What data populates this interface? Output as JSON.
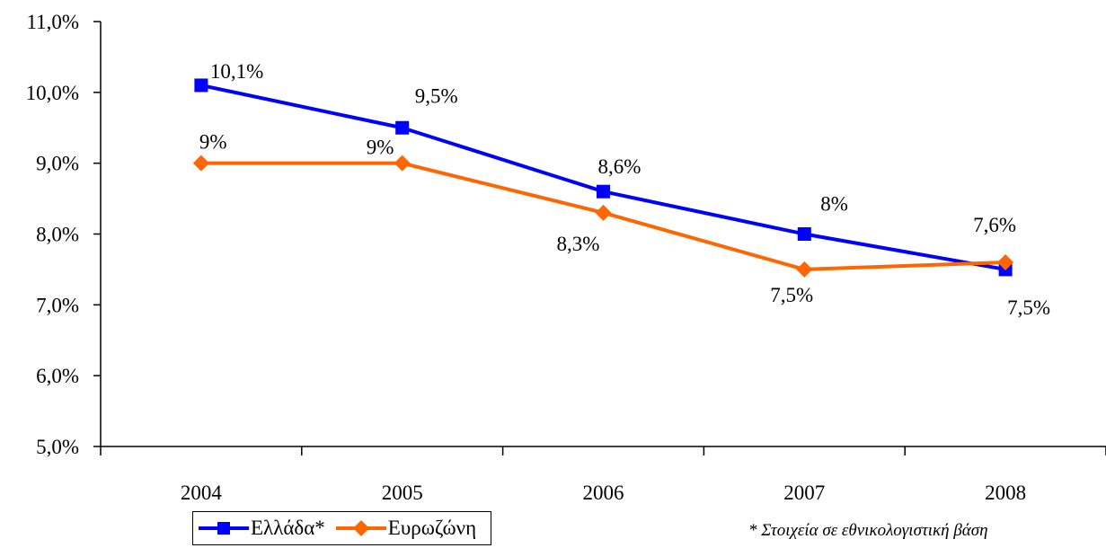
{
  "chart_data": {
    "type": "line",
    "categories": [
      "2004",
      "2005",
      "2006",
      "2007",
      "2008"
    ],
    "ylim": [
      5.0,
      11.0
    ],
    "yticks": [
      "5,0%",
      "6,0%",
      "7,0%",
      "8,0%",
      "9,0%",
      "10,0%",
      "11,0%"
    ],
    "ytick_values": [
      5,
      6,
      7,
      8,
      9,
      10,
      11
    ],
    "grid": false,
    "legend_position": "bottom-left",
    "series": [
      {
        "name": "Ελλάδα*",
        "color": "#0000FF",
        "marker": "square",
        "values": [
          10.1,
          9.5,
          8.6,
          8.0,
          7.5
        ],
        "labels": [
          "10,1%",
          "9,5%",
          "8,6%",
          "8%",
          "7,5%"
        ]
      },
      {
        "name": "Ευρωζώνη",
        "color": "#FF6600",
        "marker": "diamond",
        "values": [
          9.0,
          9.0,
          8.3,
          7.5,
          7.6
        ],
        "labels": [
          "9%",
          "9%",
          "8,3%",
          "7,5%",
          "7,6%"
        ]
      }
    ]
  },
  "footnote": "* Στοιχεία σε εθνικολογιστική βάση"
}
